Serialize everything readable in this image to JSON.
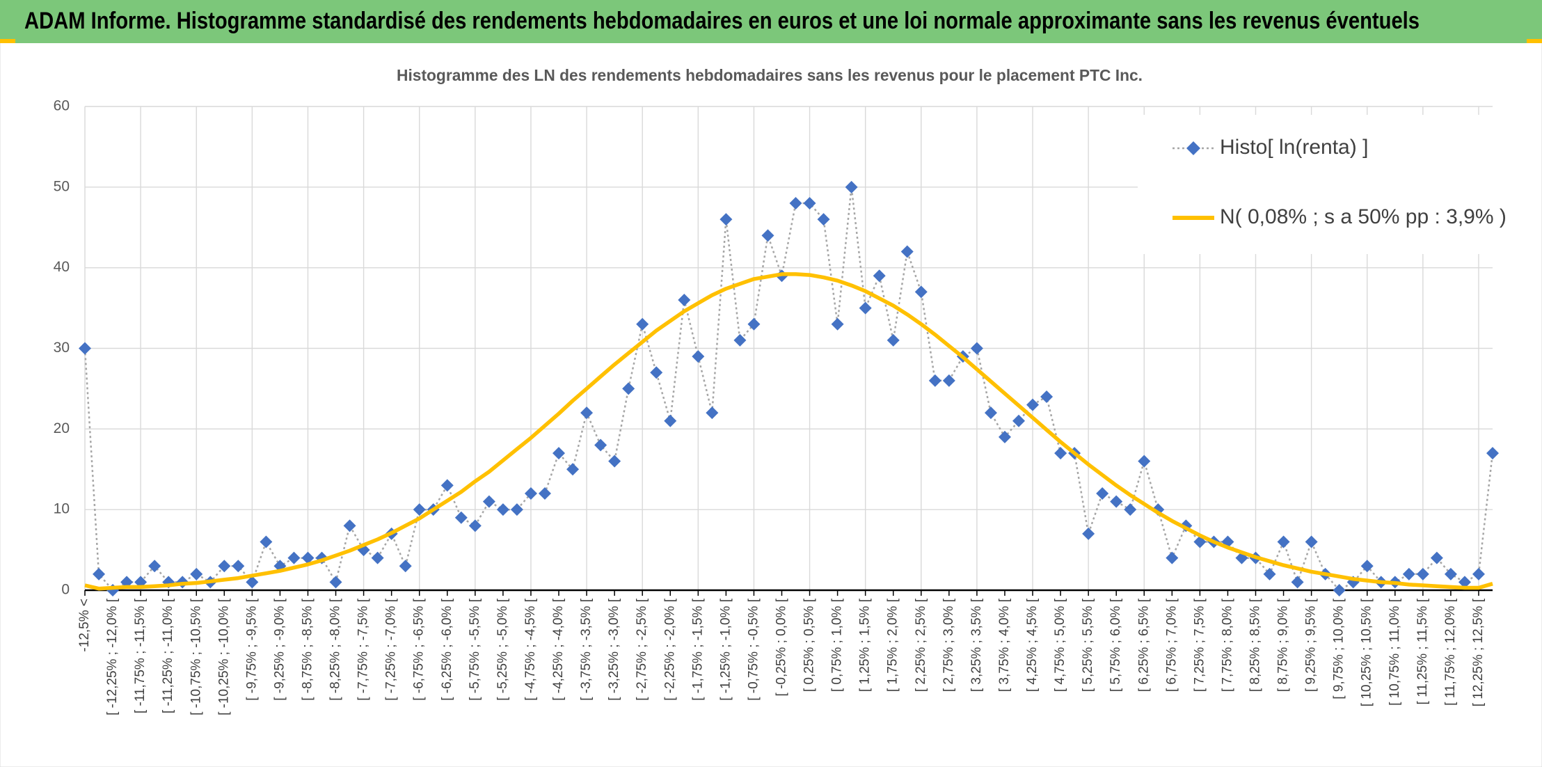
{
  "header": {
    "title": "ADAM Informe. Histogramme standardisé des rendements hebdomadaires en euros et une loi normale approximante sans les revenus éventuels"
  },
  "chart_data": {
    "type": "line",
    "title": "Histogramme des LN des rendements hebdomadaires sans les revenus pour le placement PTC Inc.",
    "categories": [
      "-12,5% <",
      null,
      "[ -12,25% ; -12,0% [",
      null,
      "[ -11,75% ; -11,5% [",
      null,
      "[ -11,25% ; -11,0% [",
      null,
      "[ -10,75% ; -10,5% [",
      null,
      "[ -10,25% ; -10,0% [",
      null,
      "[ -9,75% ; -9,5% [",
      null,
      "[ -9,25% ; -9,0% [",
      null,
      "[ -8,75% ; -8,5% [",
      null,
      "[ -8,25% ; -8,0% [",
      null,
      "[ -7,75% ; -7,5% [",
      null,
      "[ -7,25% ; -7,0% [",
      null,
      "[ -6,75% ; -6,5% [",
      null,
      "[ -6,25% ; -6,0% [",
      null,
      "[ -5,75% ; -5,5% [",
      null,
      "[ -5,25% ; -5,0% [",
      null,
      "[ -4,75% ; -4,5% [",
      null,
      "[ -4,25% ; -4,0% [",
      null,
      "[ -3,75% ; -3,5% [",
      null,
      "[ -3,25% ; -3,0% [",
      null,
      "[ -2,75% ; -2,5% [",
      null,
      "[ -2,25% ; -2,0% [",
      null,
      "[ -1,75% ; -1,5% [",
      null,
      "[ -1,25% ; -1,0% [",
      null,
      "[ -0,75% ; -0,5% [",
      null,
      "[ -0,25% ; 0,0% [",
      null,
      "[ 0,25% ; 0,5% [",
      null,
      "[ 0,75% ; 1,0% [",
      null,
      "[ 1,25% ; 1,5% [",
      null,
      "[ 1,75% ; 2,0% [",
      null,
      "[ 2,25% ; 2,5% [",
      null,
      "[ 2,75% ; 3,0% [",
      null,
      "[ 3,25% ; 3,5% [",
      null,
      "[ 3,75% ; 4,0% [",
      null,
      "[ 4,25% ; 4,5% [",
      null,
      "[ 4,75% ; 5,0% [",
      null,
      "[ 5,25% ; 5,5% [",
      null,
      "[ 5,75% ; 6,0% [",
      null,
      "[ 6,25% ; 6,5% [",
      null,
      "[ 6,75% ; 7,0% [",
      null,
      "[ 7,25% ; 7,5% [",
      null,
      "[ 7,75% ; 8,0% [",
      null,
      "[ 8,25% ; 8,5% [",
      null,
      "[ 8,75% ; 9,0% [",
      null,
      "[ 9,25% ; 9,5% [",
      null,
      "[ 9,75% ; 10,0% [",
      null,
      "[ 10,25% ; 10,5% [",
      null,
      "[ 10,75% ; 11,0% [",
      null,
      "[ 11,25% ; 11,5% [",
      null,
      "[ 11,75% ; 12,0% [",
      null,
      "[ 12,25% ; 12,5% [",
      null
    ],
    "series": [
      {
        "name": "Histo[ ln(renta) ]",
        "color": "#4472c4",
        "values": [
          30,
          2,
          0,
          1,
          1,
          3,
          1,
          1,
          2,
          1,
          3,
          3,
          1,
          6,
          3,
          4,
          4,
          4,
          1,
          8,
          5,
          4,
          7,
          3,
          10,
          10,
          13,
          9,
          8,
          11,
          10,
          10,
          12,
          12,
          17,
          15,
          22,
          18,
          16,
          25,
          33,
          27,
          21,
          36,
          29,
          22,
          46,
          31,
          33,
          44,
          39,
          48,
          48,
          46,
          33,
          50,
          35,
          39,
          31,
          42,
          37,
          26,
          26,
          29,
          30,
          22,
          19,
          21,
          23,
          24,
          17,
          17,
          7,
          12,
          11,
          10,
          16,
          10,
          4,
          8,
          6,
          6,
          6,
          4,
          4,
          2,
          6,
          1,
          6,
          2,
          0,
          1,
          3,
          1,
          1,
          2,
          2,
          4,
          2,
          1,
          2,
          17
        ]
      },
      {
        "name": "N( 0,08% ; s a 50% pp : 3,9% )",
        "color": "#ffc000",
        "values": [
          0.6,
          0.2,
          0.3,
          0.4,
          0.4,
          0.5,
          0.6,
          0.8,
          0.9,
          1.1,
          1.3,
          1.5,
          1.8,
          2.1,
          2.4,
          2.8,
          3.2,
          3.7,
          4.3,
          4.9,
          5.6,
          6.3,
          7.1,
          8.0,
          8.9,
          10.0,
          11.1,
          12.2,
          13.5,
          14.7,
          16.1,
          17.5,
          18.9,
          20.4,
          21.9,
          23.5,
          25.0,
          26.5,
          28.0,
          29.4,
          30.8,
          32.2,
          33.4,
          34.6,
          35.6,
          36.6,
          37.4,
          38.0,
          38.6,
          38.9,
          39.2,
          39.2,
          39.1,
          38.8,
          38.4,
          37.8,
          37.1,
          36.2,
          35.3,
          34.2,
          33.0,
          31.7,
          30.3,
          28.9,
          27.4,
          25.9,
          24.4,
          22.9,
          21.4,
          19.9,
          18.4,
          17.0,
          15.6,
          14.3,
          13.0,
          11.8,
          10.7,
          9.6,
          8.6,
          7.7,
          6.8,
          6.0,
          5.3,
          4.7,
          4.1,
          3.6,
          3.1,
          2.7,
          2.3,
          2.0,
          1.7,
          1.4,
          1.2,
          1.0,
          0.9,
          0.7,
          0.6,
          0.5,
          0.4,
          0.3,
          0.3,
          0.8
        ]
      }
    ],
    "ylim": [
      0,
      60
    ],
    "yticks": [
      0,
      10,
      20,
      30,
      40,
      50,
      60
    ],
    "grid": true,
    "legend": "top-right"
  }
}
